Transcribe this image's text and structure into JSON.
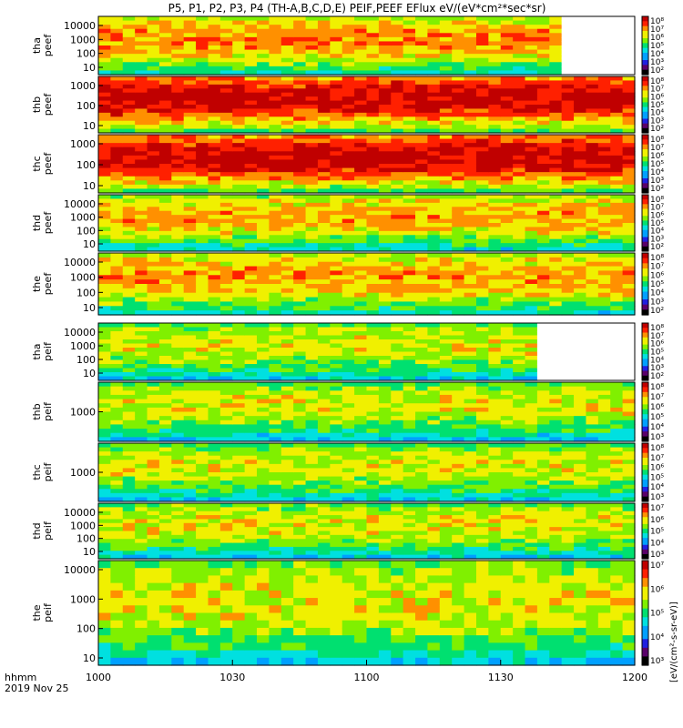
{
  "title": "P5, P1, P2, P3, P4 (TH-A,B,C,D,E) PEIF,PEEF EFlux eV/(eV*cm²*sec*sr)",
  "footer": {
    "time_label": "hhmm",
    "date_label": "2019 Nov 25"
  },
  "colorbar_label": "[eV/(cm²-s-sr-eV)]",
  "colors": {
    "background": "#ffffff",
    "axis": "#000000",
    "scale": [
      "#000000",
      "#5a006a",
      "#2020e0",
      "#00a0ff",
      "#00e0e0",
      "#00e070",
      "#80f000",
      "#f0f000",
      "#ff9000",
      "#ff2000",
      "#c00000"
    ]
  },
  "chart_data": {
    "type": "heatmap",
    "x_ticks": [
      "1000",
      "1030",
      "1100",
      "1130",
      "1200"
    ],
    "panels": [
      {
        "id": "tha-peef",
        "ylabel": [
          "tha",
          "peef"
        ],
        "y_ticks": [
          "10000",
          "1000",
          "100",
          "10"
        ],
        "cb_ticks": [
          "10⁸",
          "10⁷",
          "10⁶",
          "10⁵",
          "10⁴",
          "10³",
          "10²"
        ],
        "base": 6.5,
        "white_after": 0.86
      },
      {
        "id": "thb-peef",
        "ylabel": [
          "thb",
          "peef"
        ],
        "y_ticks": [
          "1000",
          "100",
          "10"
        ],
        "cb_ticks": [
          "10⁸",
          "10⁷",
          "10⁶",
          "10⁵",
          "10⁴",
          "10³",
          "10²"
        ],
        "base": 8.0,
        "white_after": 1.0
      },
      {
        "id": "thc-peef",
        "ylabel": [
          "thc",
          "peef"
        ],
        "y_ticks": [
          "1000",
          "100",
          "10"
        ],
        "cb_ticks": [
          "10⁸",
          "10⁷",
          "10⁶",
          "10⁵",
          "10⁴",
          "10³",
          "10²"
        ],
        "base": 8.0,
        "white_after": 1.0
      },
      {
        "id": "thd-peef",
        "ylabel": [
          "thd",
          "peef"
        ],
        "y_ticks": [
          "10000",
          "1000",
          "100",
          "10"
        ],
        "cb_ticks": [
          "10⁸",
          "10⁷",
          "10⁶",
          "10⁵",
          "10⁴",
          "10³",
          "10²"
        ],
        "base": 6.2,
        "white_after": 1.0
      },
      {
        "id": "the-peef",
        "ylabel": [
          "the",
          "peef"
        ],
        "y_ticks": [
          "10000",
          "1000",
          "100",
          "10"
        ],
        "cb_ticks": [
          "10⁸",
          "10⁷",
          "10⁶",
          "10⁵",
          "10⁴",
          "10³",
          "10²"
        ],
        "base": 6.3,
        "white_after": 1.0
      },
      {
        "id": "tha-peif",
        "ylabel": [
          "tha",
          "peif"
        ],
        "y_ticks": [
          "10000",
          "1000",
          "100",
          "10"
        ],
        "cb_ticks": [
          "10⁸",
          "10⁷",
          "10⁶",
          "10⁵",
          "10⁴",
          "10³",
          "10²"
        ],
        "base": 5.5,
        "white_after": 0.81
      },
      {
        "id": "thb-peif",
        "ylabel": [
          "thb",
          "peif"
        ],
        "y_ticks": [
          "1000"
        ],
        "cb_ticks": [
          "10⁸",
          "10⁷",
          "10⁶",
          "10⁵",
          "10⁴",
          "10³"
        ],
        "base": 5.5,
        "white_after": 1.0
      },
      {
        "id": "thc-peif",
        "ylabel": [
          "thc",
          "peif"
        ],
        "y_ticks": [
          "1000"
        ],
        "cb_ticks": [
          "10⁸",
          "10⁷",
          "10⁶",
          "10⁵",
          "10⁴",
          "10³"
        ],
        "base": 5.5,
        "white_after": 1.0
      },
      {
        "id": "thd-peif",
        "ylabel": [
          "thd",
          "peif"
        ],
        "y_ticks": [
          "10000",
          "1000",
          "100",
          "10"
        ],
        "cb_ticks": [
          "10⁷",
          "10⁶",
          "10⁵",
          "10⁴",
          "10³"
        ],
        "base": 5.6,
        "white_after": 1.0
      },
      {
        "id": "the-peif",
        "ylabel": [
          "the",
          "peif"
        ],
        "y_ticks": [
          "10000",
          "1000",
          "100",
          "10"
        ],
        "cb_ticks": [
          "10⁷",
          "10⁶",
          "10⁵",
          "10⁴",
          "10³"
        ],
        "base": 5.6,
        "white_after": 1.0
      }
    ]
  }
}
